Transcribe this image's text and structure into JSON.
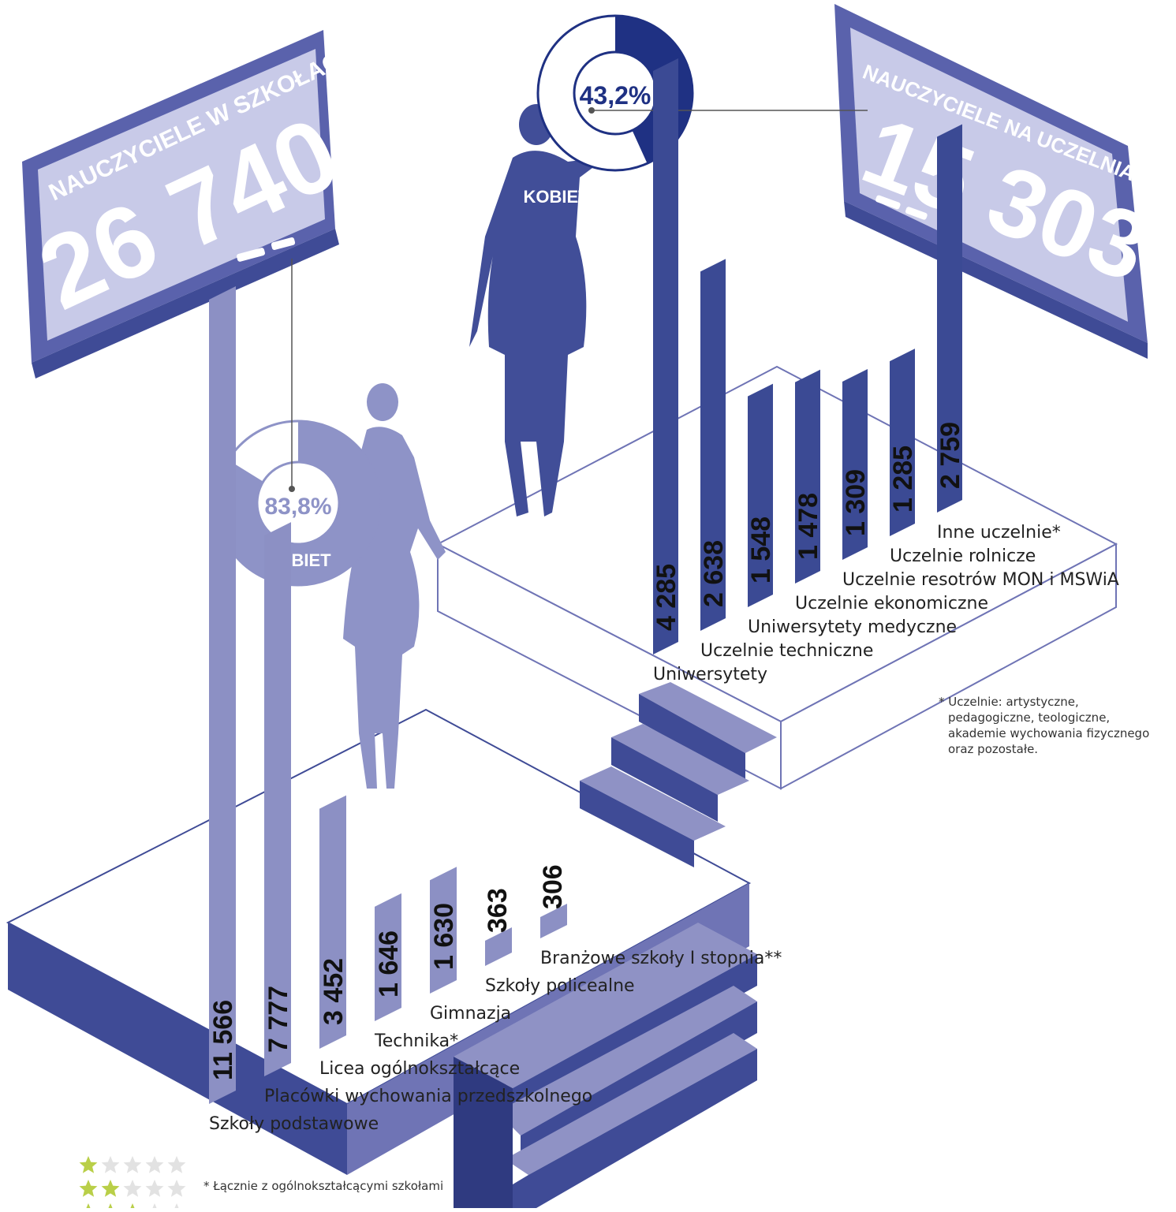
{
  "boards": {
    "schools": {
      "title": "NAUCZYCIELE W SZKOŁACH",
      "number": "26 740"
    },
    "universities": {
      "title": "NAUCZYCIELE NA UCZELNIACH",
      "number": "15 303"
    }
  },
  "women": {
    "schools": {
      "percent_label": "83,8%",
      "share": 0.838,
      "label": "KOBIET"
    },
    "universities": {
      "percent_label": "43,2%",
      "share": 0.432,
      "label": "KOBIET"
    }
  },
  "colors": {
    "university_bar": "#3b4a94",
    "school_bar": "#8c90c4",
    "board_face": "#c8cae8",
    "board_frame": "#5a62ac",
    "step_dark": "#3f4b96",
    "step_light": "#8f92c5",
    "silhouette_dark": "#414e98",
    "silhouette_light": "#8e93c7",
    "text": "#222222"
  },
  "chart_data": [
    {
      "type": "bar",
      "categories": [
        "Szkoły podstawowe",
        "Placówki wychowania przedszkolnego",
        "Licea ogólnokształcące",
        "Technika*",
        "Gimnazja",
        "Szkoły policealne",
        "Branżowe szkoły I stopnia**"
      ],
      "values": [
        11566,
        7777,
        3452,
        1646,
        1630,
        363,
        306
      ],
      "value_labels": [
        "11 566",
        "7 777",
        "3 452",
        "1 646",
        "1 630",
        "363",
        "306"
      ]
    },
    {
      "type": "bar",
      "categories": [
        "Uniwersytety",
        "Uczelnie techniczne",
        "Uniwersytety medyczne",
        "Uczelnie ekonomiczne",
        "Uczelnie resotrów MON i MSWiA",
        "Uczelnie rolnicze",
        "Inne uczelnie*"
      ],
      "values": [
        4285,
        2638,
        1548,
        1478,
        1309,
        1285,
        2759
      ],
      "value_labels": [
        "4 285",
        "2 638",
        "1 548",
        "1 478",
        "1 309",
        "1 285",
        "2 759"
      ]
    }
  ],
  "footnotes": {
    "uczelnie": [
      "* Uczelnie: artystyczne,",
      "pedagogiczne, teologiczne,",
      "akademie wychowania fizycznego",
      "oraz pozostałe."
    ],
    "technika": "* Łącznie z ogólnokształcącymi szkołami"
  },
  "rating_icons": [
    "star-icon",
    "star-icon",
    "star-icon"
  ]
}
